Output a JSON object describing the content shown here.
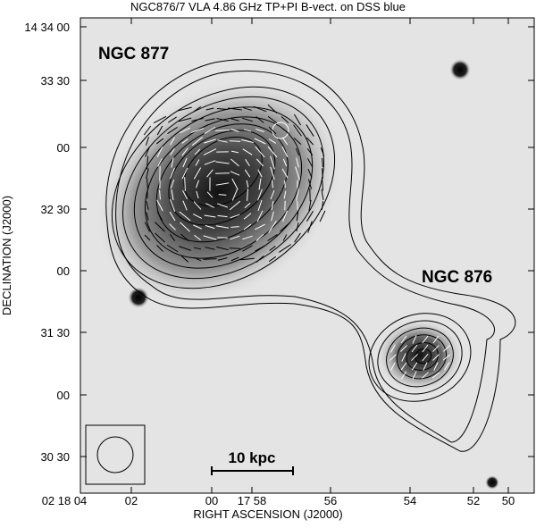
{
  "title": "NGC876/7 VLA 4.86 GHz TP+PI B-vect. on DSS blue",
  "x_axis": {
    "label": "RIGHT ASCENSION (J2000)",
    "ticks": [
      "02 18 04",
      "02",
      "00",
      "17 58",
      "56",
      "54",
      "52",
      "50"
    ]
  },
  "y_axis": {
    "label": "DECLINATION (J2000)",
    "ticks": [
      "14 34 00",
      "33 30",
      "00",
      "32 30",
      "00",
      "31 30",
      "00",
      "30 30"
    ]
  },
  "annotations": [
    "NGC 877",
    "NGC 876"
  ],
  "scale_bar": "10 kpc"
}
